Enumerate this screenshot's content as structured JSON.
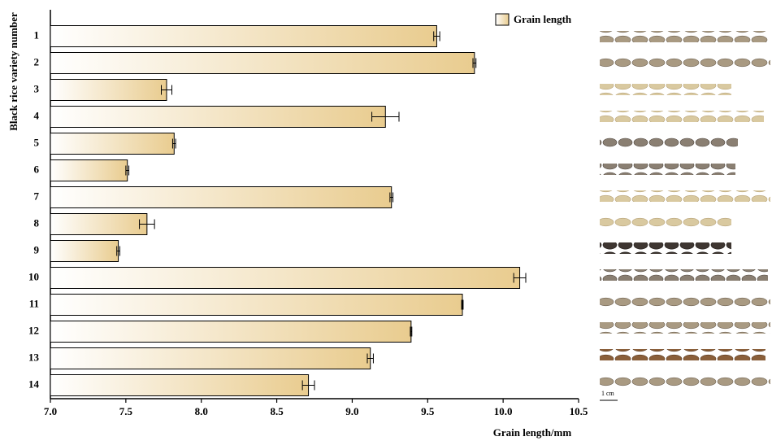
{
  "chart_data": {
    "type": "hbar",
    "categories": [
      "1",
      "2",
      "3",
      "4",
      "5",
      "6",
      "7",
      "8",
      "9",
      "10",
      "11",
      "12",
      "13",
      "14"
    ],
    "series": [
      {
        "name": "Grain length",
        "color": "#e9cc8f",
        "values": [
          9.56,
          9.81,
          7.77,
          9.22,
          7.82,
          7.51,
          9.26,
          7.64,
          7.45,
          10.11,
          9.73,
          9.39,
          9.12,
          8.71
        ],
        "errors": [
          0.02,
          0.01,
          0.035,
          0.09,
          0.01,
          0.01,
          0.01,
          0.05,
          0.01,
          0.04,
          0.005,
          0.005,
          0.02,
          0.04
        ]
      }
    ],
    "xlim": [
      7,
      10.5
    ],
    "xticks": [
      {
        "value": 7,
        "label": "7.0"
      },
      7.5,
      {
        "value": 8,
        "label": "8.0"
      },
      8.5,
      {
        "value": 9,
        "label": "9.0"
      },
      9.5,
      {
        "value": 10,
        "label": "10.0"
      },
      10.5
    ],
    "xlabel": "Grain length/mm",
    "ylabel": "Black rice variety number",
    "legend": "top-right"
  },
  "scale_label": "1 cm"
}
